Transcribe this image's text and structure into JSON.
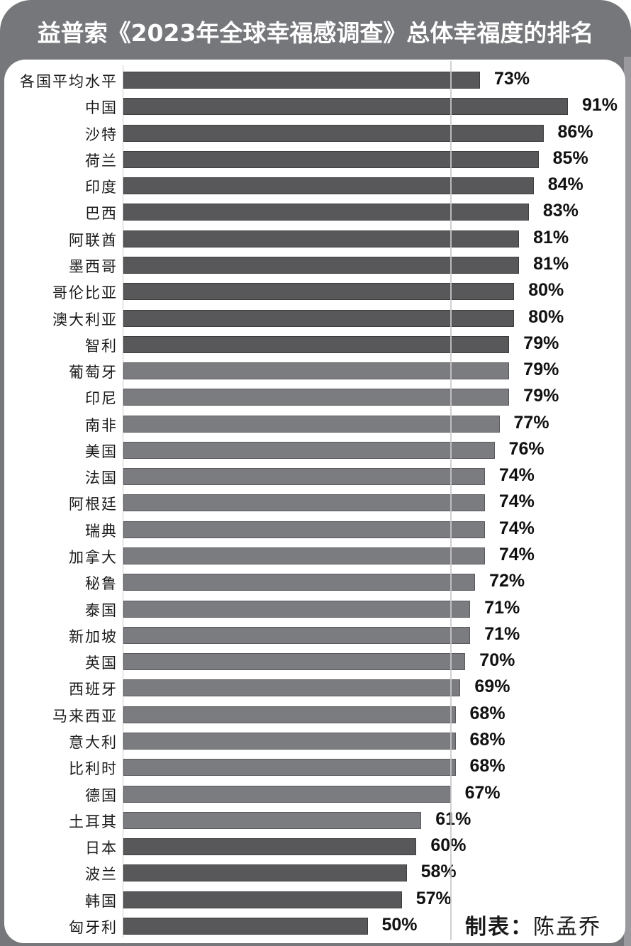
{
  "title": "益普索《2023年全球幸福感调查》总体幸福度的排名",
  "credit": {
    "label": "制表：",
    "author": "陈孟乔"
  },
  "colors": {
    "frame": "#76777b",
    "bar_dark": "#58585a",
    "bar_light": "#7b7c80",
    "gridline": "#c9c9cd",
    "panel": "#ffffff"
  },
  "chart_data": {
    "type": "bar",
    "orientation": "horizontal",
    "title": "益普索《2023年全球幸福感调查》总体幸福度的排名",
    "xlabel": "",
    "ylabel": "",
    "unit": "%",
    "xlim": [
      0,
      100
    ],
    "grid": "single vertical reference line at ~67%",
    "legend": null,
    "categories": [
      "各国平均水平",
      "中国",
      "沙特",
      "荷兰",
      "印度",
      "巴西",
      "阿联酋",
      "墨西哥",
      "哥伦比亚",
      "澳大利亚",
      "智利",
      "葡萄牙",
      "印尼",
      "南非",
      "美国",
      "法国",
      "阿根廷",
      "瑞典",
      "加拿大",
      "秘鲁",
      "泰国",
      "新加坡",
      "英国",
      "西班牙",
      "马来西亚",
      "意大利",
      "比利时",
      "德国",
      "土耳其",
      "日本",
      "波兰",
      "韩国",
      "匈牙利"
    ],
    "values": [
      73,
      91,
      86,
      85,
      84,
      83,
      81,
      81,
      80,
      80,
      79,
      79,
      79,
      77,
      76,
      74,
      74,
      74,
      74,
      72,
      71,
      71,
      70,
      69,
      68,
      68,
      68,
      67,
      61,
      60,
      58,
      57,
      50
    ],
    "bar_shade": [
      "dark",
      "dark",
      "dark",
      "dark",
      "dark",
      "dark",
      "dark",
      "dark",
      "dark",
      "dark",
      "dark",
      "light",
      "light",
      "light",
      "light",
      "light",
      "light",
      "light",
      "light",
      "light",
      "light",
      "light",
      "light",
      "light",
      "light",
      "light",
      "light",
      "light",
      "light",
      "dark",
      "dark",
      "dark",
      "dark"
    ],
    "data_labels": [
      "73%",
      "91%",
      "86%",
      "85%",
      "84%",
      "83%",
      "81%",
      "81%",
      "80%",
      "80%",
      "79%",
      "79%",
      "79%",
      "77%",
      "76%",
      "74%",
      "74%",
      "74%",
      "74%",
      "72%",
      "71%",
      "71%",
      "70%",
      "69%",
      "68%",
      "68%",
      "68%",
      "67%",
      "61%",
      "60%",
      "58%",
      "57%",
      "50%"
    ]
  }
}
